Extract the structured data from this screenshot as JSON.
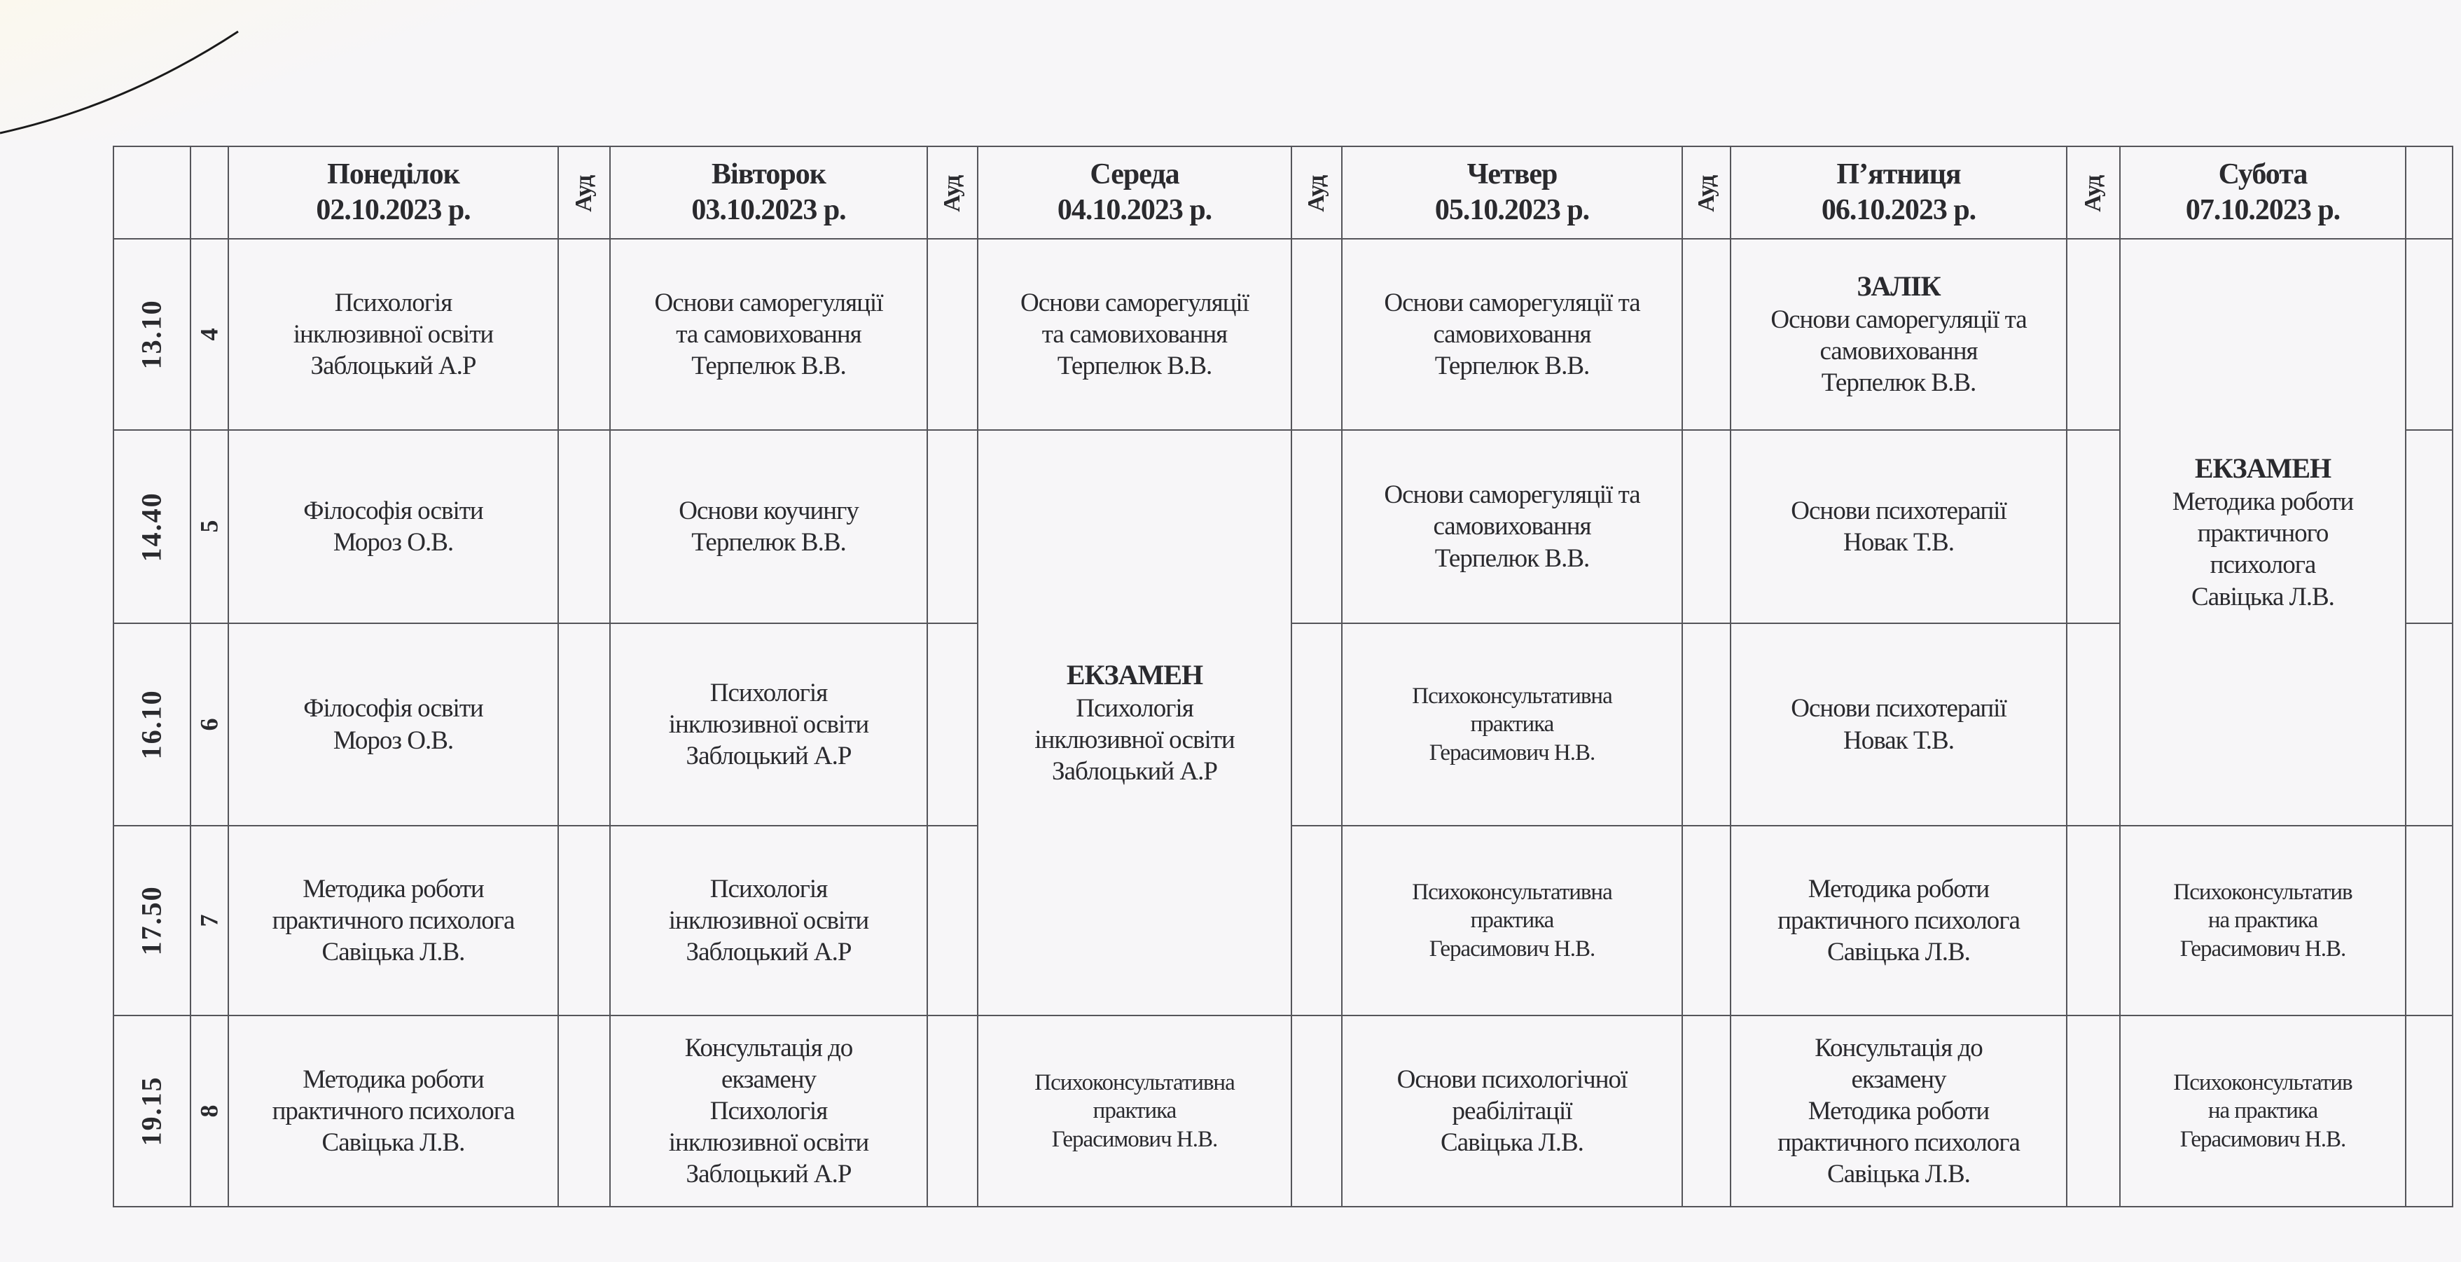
{
  "aud_label": "Ауд",
  "days": [
    {
      "name": "Понеділок",
      "date": "02.10.2023 р."
    },
    {
      "name": "Вівторок",
      "date": "03.10.2023 р."
    },
    {
      "name": "Середа",
      "date": "04.10.2023 р."
    },
    {
      "name": "Четвер",
      "date": "05.10.2023 р."
    },
    {
      "name": "П’ятниця",
      "date": "06.10.2023 р."
    },
    {
      "name": "Субота",
      "date": "07.10.2023 р."
    }
  ],
  "rows": [
    {
      "time": "13.10",
      "pair": "4"
    },
    {
      "time": "14.40",
      "pair": "5"
    },
    {
      "time": "16.10",
      "pair": "6"
    },
    {
      "time": "17.50",
      "pair": "7"
    },
    {
      "time": "19.15",
      "pair": "8"
    }
  ],
  "cells": {
    "mon": [
      [
        "Психологія",
        "інклюзивної освіти",
        "Заблоцький А.Р"
      ],
      [
        "Філософія освіти",
        "Мороз О.В."
      ],
      [
        "Філософія освіти",
        "Мороз О.В."
      ],
      [
        "Методика роботи",
        "практичного психолога",
        "Савіцька Л.В."
      ],
      [
        "Методика роботи",
        "практичного психолога",
        "Савіцька Л.В."
      ]
    ],
    "tue": [
      [
        "Основи саморегуляції",
        "та самовиховання",
        "Терпелюк В.В."
      ],
      [
        "Основи коучингу",
        "Терпелюк В.В."
      ],
      [
        "Психологія",
        "інклюзивної освіти",
        "Заблоцький А.Р"
      ],
      [
        "Психологія",
        "інклюзивної освіти",
        "Заблоцький А.Р"
      ],
      [
        "Консультація до",
        "екзамену",
        "Психологія",
        "інклюзивної освіти",
        "Заблоцький А.Р"
      ]
    ],
    "wed": {
      "r4": [
        "Основи саморегуляції",
        "та самовиховання",
        "Терпелюк В.В."
      ],
      "exam_label": "ЕКЗАМЕН",
      "exam": [
        "Психологія",
        "інклюзивної освіти",
        "Заблоцький А.Р"
      ],
      "r8": [
        "Психоконсультативна",
        "практика",
        "Герасимович Н.В."
      ]
    },
    "thu": [
      [
        "Основи саморегуляції та",
        "самовиховання",
        "Терпелюк В.В."
      ],
      [
        "Основи саморегуляції та",
        "самовиховання",
        "Терпелюк В.В."
      ],
      [
        "Психоконсультативна",
        "практика",
        "Герасимович Н.В."
      ],
      [
        "Психоконсультативна",
        "практика",
        "Герасимович Н.В."
      ],
      [
        "Основи психологічної",
        "реабілітації",
        "Савіцька Л.В."
      ]
    ],
    "fri": {
      "zalik_label": "ЗАЛІК",
      "r4": [
        "Основи саморегуляції та",
        "самовиховання",
        "Терпелюк В.В."
      ],
      "r5": [
        "Основи психотерапії",
        "Новак Т.В."
      ],
      "r6": [
        "Основи психотерапії",
        "Новак Т.В."
      ],
      "r7": [
        "Методика роботи",
        "практичного психолога",
        "Савіцька Л.В."
      ],
      "r8_label": [
        "Консультація до",
        "екзамену"
      ],
      "r8": [
        "Методика роботи",
        "практичного психолога",
        "Савіцька Л.В."
      ]
    },
    "sat": {
      "exam_label": "ЕКЗАМЕН",
      "exam": [
        "Методика роботи",
        "практичного",
        "психолога",
        "Савіцька Л.В."
      ],
      "r7": [
        "Психоконсультатив",
        "на практика",
        "Герасимович Н.В."
      ],
      "r8": [
        "Психоконсультатив",
        "на практика",
        "Герасимович Н.В."
      ]
    }
  }
}
